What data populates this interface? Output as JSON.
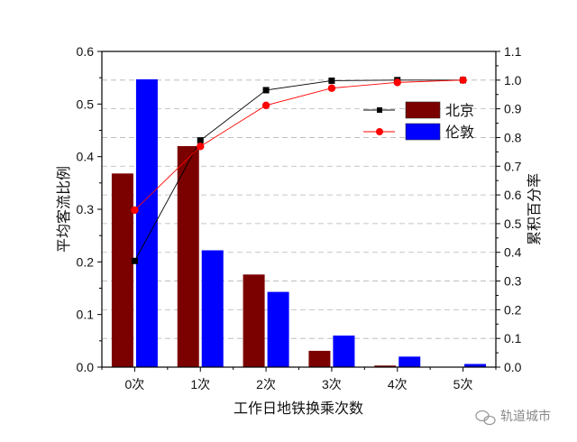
{
  "chart_data": {
    "type": "bar",
    "categories": [
      "0次",
      "1次",
      "2次",
      "3次",
      "4次",
      "5次"
    ],
    "xlabel": "工作日地铁换乘次数",
    "ylabel": "平均客流比例",
    "y2label": "累积百分率",
    "ylim": [
      0,
      0.6
    ],
    "y2lim": [
      0,
      1.1
    ],
    "yticks": [
      "0.0",
      "0.1",
      "0.2",
      "0.3",
      "0.4",
      "0.5",
      "0.6"
    ],
    "y2ticks": [
      "0.0",
      "0.1",
      "0.2",
      "0.3",
      "0.4",
      "0.5",
      "0.6",
      "0.7",
      "0.8",
      "0.9",
      "1.0",
      "1.1"
    ],
    "grid": "horizontal dashed",
    "legend_position": "top-right",
    "series": [
      {
        "name": "北京",
        "type": "bar",
        "axis": "left",
        "color": "#7b0000",
        "values": [
          0.368,
          0.42,
          0.176,
          0.031,
          0.003,
          0.0
        ]
      },
      {
        "name": "伦敦",
        "type": "bar",
        "axis": "left",
        "color": "#0000ff",
        "values": [
          0.547,
          0.222,
          0.143,
          0.06,
          0.02,
          0.006
        ]
      },
      {
        "name": "北京",
        "type": "line",
        "axis": "right",
        "color": "#000000",
        "marker": "square",
        "values": [
          0.37,
          0.79,
          0.965,
          0.998,
          1.0,
          1.0
        ]
      },
      {
        "name": "伦敦",
        "type": "line",
        "axis": "right",
        "color": "#ff0000",
        "marker": "circle",
        "values": [
          0.547,
          0.769,
          0.912,
          0.972,
          0.992,
          1.0
        ]
      }
    ]
  },
  "legend": {
    "beijing": "北京",
    "london": "伦敦",
    "beijing_color": "#7b0000",
    "london_color": "#0000ff"
  },
  "watermark": {
    "icon": "wechat-icon",
    "text": "轨道城市"
  }
}
